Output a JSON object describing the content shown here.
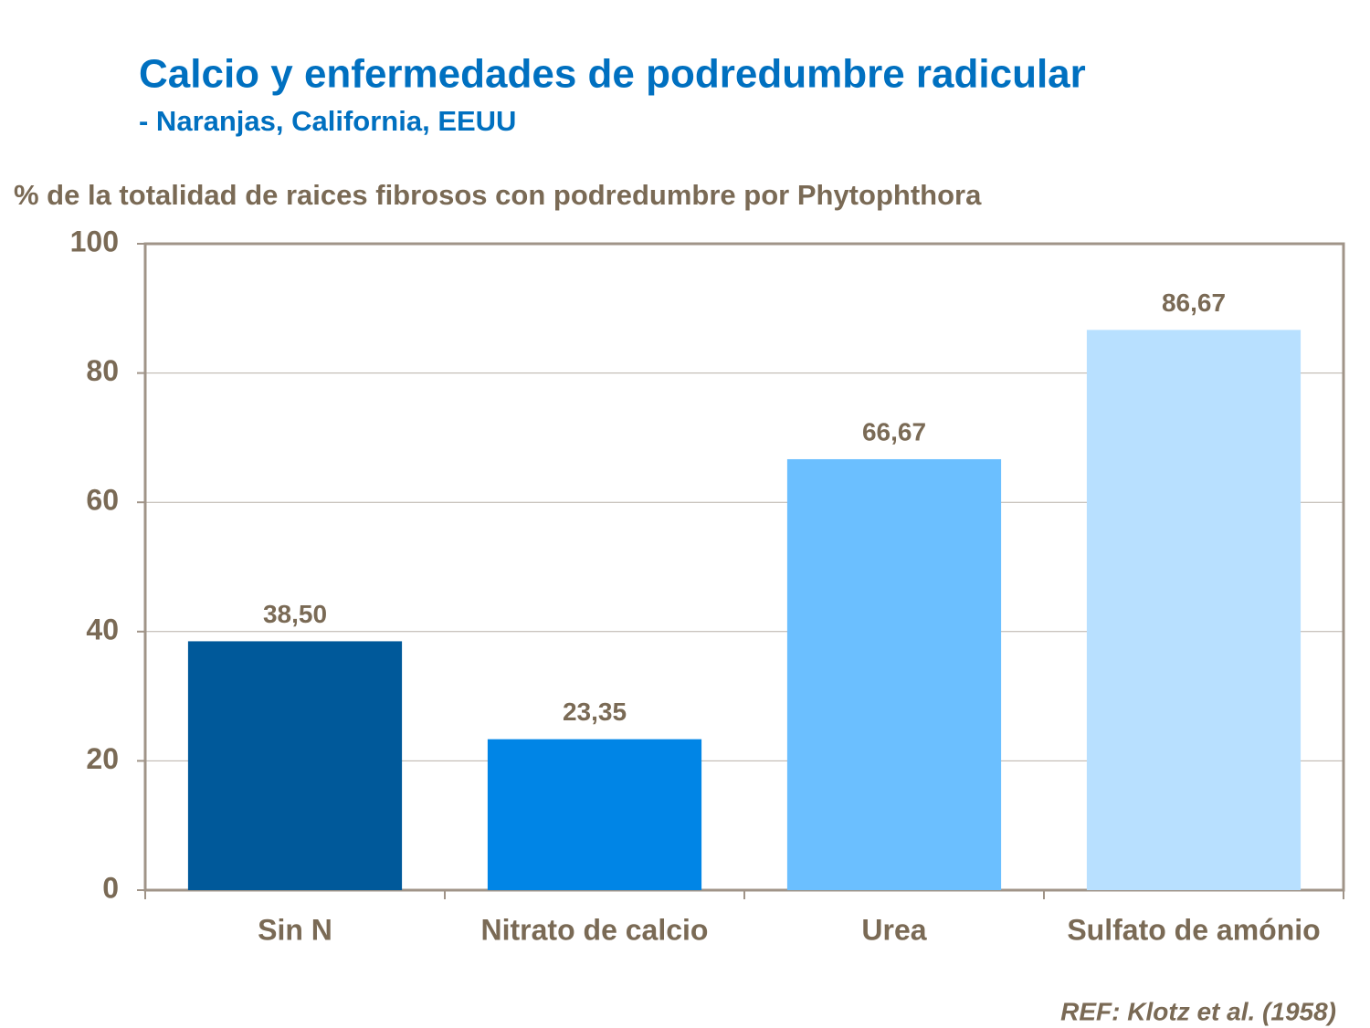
{
  "chart_data": {
    "type": "bar",
    "title": "Calcio y enfermedades de podredumbre radicular",
    "subtitle": "- Naranjas, California, EEUU",
    "y_label": "% de la totalidad de raices fibrosos con podredumbre por Phytophthora",
    "categories": [
      "Sin N",
      "Nitrato de calcio",
      "Urea",
      "Sulfato de amónio"
    ],
    "values": [
      38.5,
      23.35,
      66.67,
      86.67
    ],
    "value_labels": [
      "38,50",
      "23,35",
      "66,67",
      "86,67"
    ],
    "colors": [
      "#00599a",
      "#0085e6",
      "#6bbfff",
      "#b8e0ff"
    ],
    "ylim": [
      0,
      100
    ],
    "yticks": [
      0,
      20,
      40,
      60,
      80,
      100
    ],
    "grid": true,
    "note": "REF: Klotz et al. (1958)"
  }
}
